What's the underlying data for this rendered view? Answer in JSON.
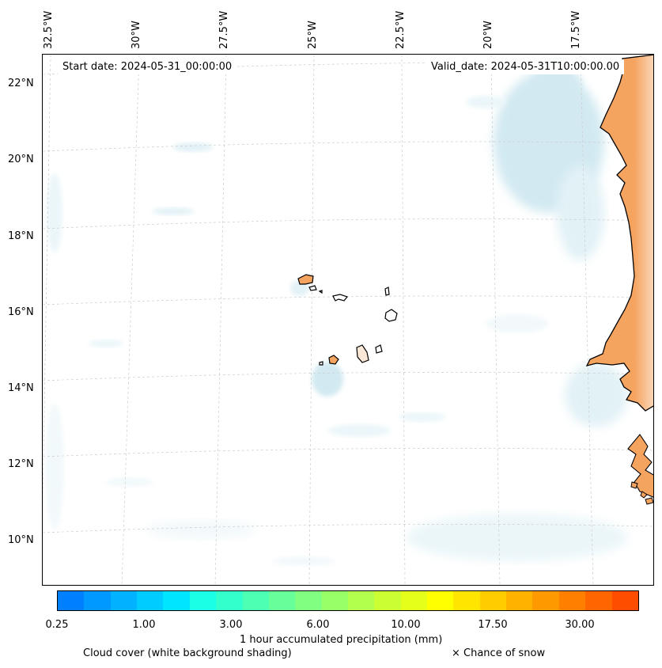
{
  "map": {
    "longitude_labels": [
      "32.5°W",
      "30°W",
      "27.5°W",
      "25°W",
      "22.5°W",
      "20°W",
      "17.5°W"
    ],
    "latitude_labels": [
      "22°N",
      "20°N",
      "18°N",
      "16°N",
      "14°N",
      "12°N",
      "10°N"
    ],
    "start_date": "Start date: 2024-05-31_00:00:00",
    "valid_date": "Valid_date: 2024-05-31T10:00:00.00",
    "land_color": "#f5a460",
    "cloud_color": "#add8e6"
  },
  "colorbar": {
    "colors": [
      "#0080ff",
      "#0099ff",
      "#00b2ff",
      "#00ccff",
      "#00e5ff",
      "#1affe5",
      "#33ffcc",
      "#4dffb2",
      "#66ff99",
      "#80ff80",
      "#99ff66",
      "#b2ff4d",
      "#ccff33",
      "#e5ff1a",
      "#ffff00",
      "#ffe500",
      "#ffcc00",
      "#ffb200",
      "#ff9900",
      "#ff8000",
      "#ff6600",
      "#ff4d00"
    ],
    "tick_labels": [
      "0.25",
      "1.00",
      "3.00",
      "6.00",
      "10.00",
      "17.50",
      "30.00"
    ],
    "label": "1 hour accumulated precipitation (mm)"
  },
  "legend": {
    "cloud_note": "Cloud cover (white background shading)",
    "snow_note": "× Chance of snow"
  }
}
